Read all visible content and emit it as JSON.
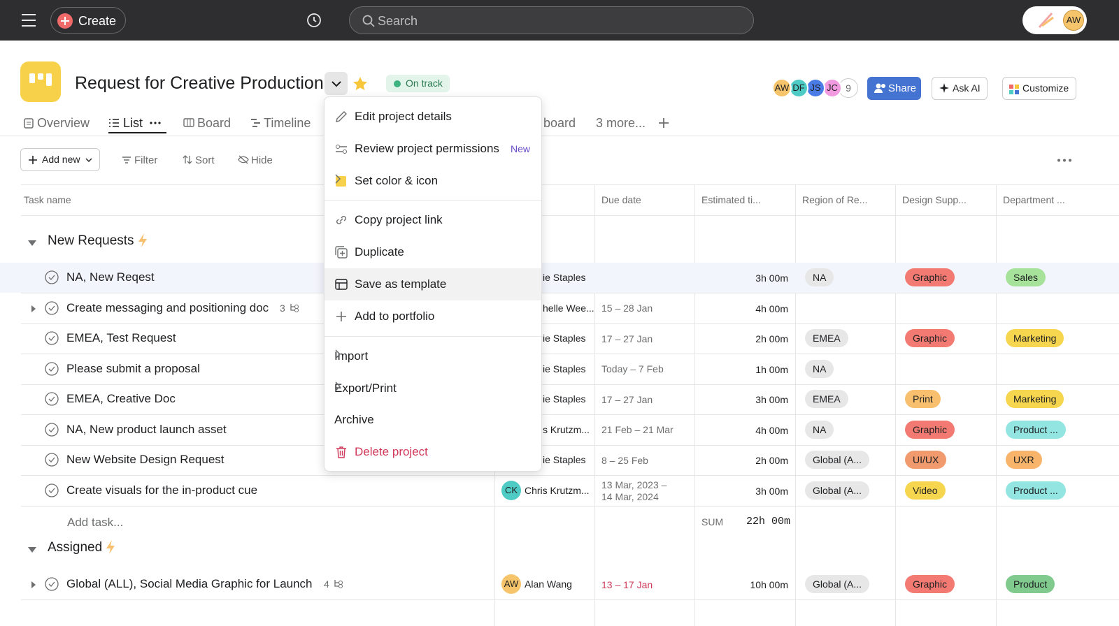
{
  "topbar": {
    "create": "Create",
    "search": "Search",
    "avatar": "AW"
  },
  "header": {
    "title": "Request for Creative Production",
    "status": "On track",
    "avatars": [
      {
        "initials": "AW",
        "color": "#f6c46a"
      },
      {
        "initials": "DF",
        "color": "#4ecbc4"
      },
      {
        "initials": "JS",
        "color": "#4b7be5"
      },
      {
        "initials": "JC",
        "color": "#f29ae0"
      }
    ],
    "member_count": "9",
    "share": "Share",
    "ask_ai": "Ask AI",
    "customize": "Customize"
  },
  "tabs": [
    "Overview",
    "List",
    "Board",
    "Timeline",
    "board",
    "3 more..."
  ],
  "toolbar": {
    "add_new": "Add new",
    "filter": "Filter",
    "sort": "Sort",
    "hide": "Hide"
  },
  "columns": [
    "Task name",
    "Due date",
    "Estimated ti...",
    "Region of Re...",
    "Design Supp...",
    "Department ..."
  ],
  "sections": [
    {
      "title": "New Requests",
      "tasks": [
        {
          "name": "NA, New Reqest",
          "assignee": {
            "name": "ie Staples"
          },
          "due": "",
          "estimate": "3h 00m",
          "region": "NA",
          "design": "Graphic",
          "department": "Sales"
        },
        {
          "name": "Create messaging and positioning doc",
          "subtasks": "3",
          "assignee": {
            "name": "helle Wee..."
          },
          "due": "15 – 28 Jan",
          "estimate": "4h 00m",
          "region": "",
          "design": "",
          "department": ""
        },
        {
          "name": "EMEA, Test Request",
          "assignee": {
            "name": "ie Staples"
          },
          "due": "17 – 27 Jan",
          "estimate": "2h 00m",
          "region": "EMEA",
          "design": "Graphic",
          "department": "Marketing"
        },
        {
          "name": "Please submit a proposal",
          "assignee": {
            "name": "ie Staples"
          },
          "due": "Today – 7 Feb",
          "estimate": "1h 00m",
          "region": "NA",
          "design": "",
          "department": ""
        },
        {
          "name": "EMEA, Creative Doc",
          "assignee": {
            "name": "ie Staples"
          },
          "due": "17 – 27 Jan",
          "estimate": "3h 00m",
          "region": "EMEA",
          "design": "Print",
          "department": "Marketing"
        },
        {
          "name": "NA, New product launch asset",
          "assignee": {
            "name": "s Krutzm..."
          },
          "due": "21 Feb – 21 Mar",
          "estimate": "4h 00m",
          "region": "NA",
          "design": "Graphic",
          "department": "Product ..."
        },
        {
          "name": "New Website Design Request",
          "assignee": {
            "name": "ie Staples"
          },
          "due": "8 – 25 Feb",
          "estimate": "2h 00m",
          "region": "Global (A...",
          "design": "UI/UX",
          "department": "UXR"
        },
        {
          "name": "Create visuals for the in-product cue",
          "assignee": {
            "name": "Chris Krutzm...",
            "initials": "CK",
            "color": "#4ecbc4"
          },
          "due": "13 Mar, 2023 – 14 Mar, 2024",
          "estimate": "3h 00m",
          "region": "Global (A...",
          "design": "Video",
          "department": "Product ..."
        }
      ],
      "add_task": "Add task...",
      "sum_label": "SUM",
      "sum": "22h 00m"
    },
    {
      "title": "Assigned",
      "tasks": [
        {
          "name": "Global (ALL), Social Media Graphic for Launch",
          "subtasks": "4",
          "assignee": {
            "name": "Alan Wang",
            "initials": "AW",
            "color": "#f6c46a"
          },
          "due": "13 – 17 Jan",
          "due_color": "#d1395a",
          "estimate": "10h 00m",
          "region": "Global (A...",
          "design": "Graphic",
          "department": "Product"
        }
      ]
    }
  ],
  "pill_colors": {
    "NA": "#e7e7e8",
    "EMEA": "#e7e7e8",
    "Global (A...": "#e7e7e8",
    "Graphic": "#f27a72",
    "Print": "#f8c06e",
    "UI/UX": "#f19a6e",
    "Video": "#f6d64e",
    "Sales": "#a6e29a",
    "Marketing": "#f6d64e",
    "Product ...": "#93e5e1",
    "UXR": "#f8b46a",
    "Product": "#7fca8c"
  },
  "menu": {
    "edit": "Edit project details",
    "permissions": "Review project permissions",
    "new_badge": "New",
    "color_icon": "Set color & icon",
    "copy_link": "Copy project link",
    "duplicate": "Duplicate",
    "template": "Save as template",
    "portfolio": "Add to portfolio",
    "import": "Import",
    "export": "Export/Print",
    "archive": "Archive",
    "delete": "Delete project"
  }
}
